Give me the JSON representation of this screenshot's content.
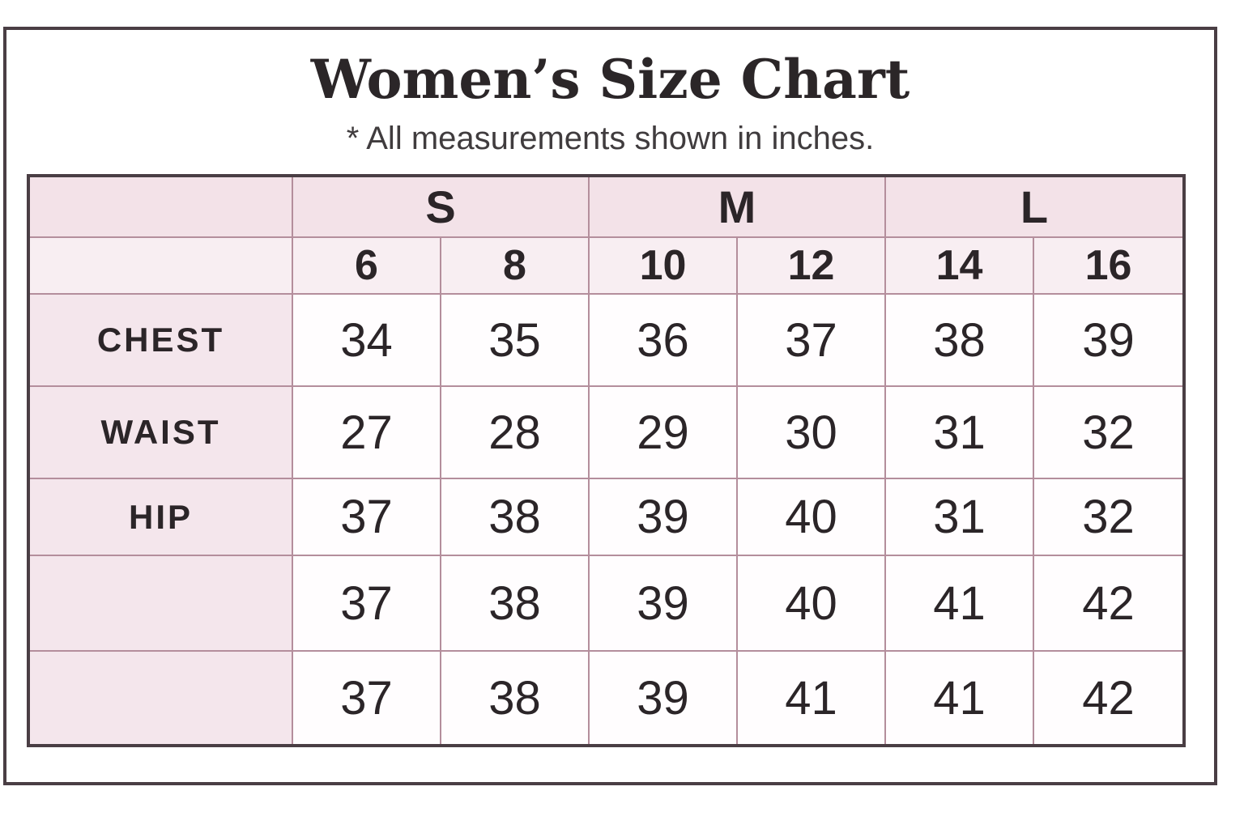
{
  "title": "Women’s Size Chart",
  "subtitle": "* All measurements shown in inches.",
  "colors": {
    "frame_border": "#4a3e44",
    "grid_line": "#b48e9c",
    "group_header_bg": "#f3e2e8",
    "size_header_bg": "#f8eef2",
    "row_label_bg": "#f4e6ec",
    "value_cell_bg": "#fffdfe",
    "text": "#2b2528"
  },
  "chart_data": {
    "type": "table",
    "units_note": "inches",
    "size_groups": [
      {
        "label": "S",
        "spans": 2
      },
      {
        "label": "M",
        "spans": 2
      },
      {
        "label": "L",
        "spans": 2
      }
    ],
    "numeric_sizes": [
      "6",
      "8",
      "10",
      "12",
      "14",
      "16"
    ],
    "rows": [
      {
        "label": "CHEST",
        "values": [
          "34",
          "35",
          "36",
          "37",
          "38",
          "39"
        ]
      },
      {
        "label": "WAIST",
        "values": [
          "27",
          "28",
          "29",
          "30",
          "31",
          "32"
        ]
      },
      {
        "label": "HIP",
        "values": [
          "37",
          "38",
          "39",
          "40",
          "31",
          "32"
        ]
      },
      {
        "label": "",
        "values": [
          "37",
          "38",
          "39",
          "40",
          "41",
          "42"
        ]
      },
      {
        "label": "",
        "values": [
          "37",
          "38",
          "39",
          "41",
          "41",
          "42"
        ]
      }
    ]
  }
}
